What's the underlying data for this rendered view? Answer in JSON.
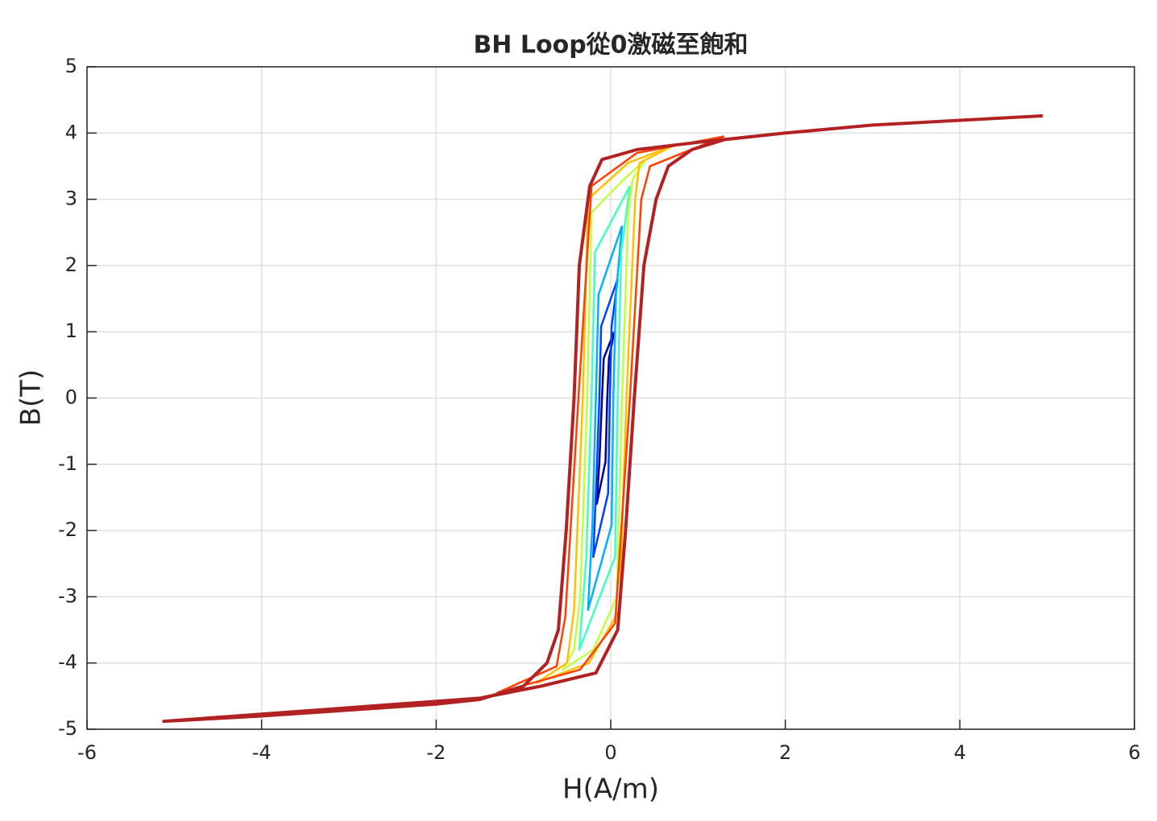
{
  "chart_data": {
    "type": "line",
    "title": "BH Loop從0激磁至飽和",
    "x_label": "H(A/m)",
    "y_label": "B(T)",
    "xlim": [
      -6,
      6
    ],
    "xticks": [
      -6,
      -4,
      -2,
      0,
      2,
      4,
      6
    ],
    "ylim": [
      -5,
      5
    ],
    "yticks": [
      -5,
      -4,
      -3,
      -2,
      -1,
      0,
      1,
      2,
      3,
      4,
      5
    ],
    "grid": true,
    "series": [
      {
        "color": "#00008f",
        "x": [
          0.04,
          -0.08,
          -0.1,
          -0.13,
          -0.16,
          -0.06,
          -0.04,
          -0.02,
          0.04
        ],
        "y": [
          1.0,
          0.6,
          0,
          -0.96,
          -1.6,
          -0.96,
          0,
          0.6,
          1.0
        ]
      },
      {
        "color": "#0040ff",
        "x": [
          0.08,
          -0.11,
          -0.13,
          -0.17,
          -0.2,
          -0.03,
          -0.01,
          0.01,
          0.08
        ],
        "y": [
          1.8,
          1.08,
          0,
          -1.44,
          -2.4,
          -1.44,
          0,
          1.08,
          1.8
        ]
      },
      {
        "color": "#00b0ff",
        "x": [
          0.13,
          -0.14,
          -0.17,
          -0.21,
          -0.26,
          0.01,
          0.03,
          0.06,
          0.13
        ],
        "y": [
          2.6,
          1.56,
          0,
          -1.92,
          -3.2,
          -1.92,
          0,
          1.56,
          2.6
        ]
      },
      {
        "color": "#40ffc0",
        "x": [
          0.22,
          -0.18,
          -0.22,
          -0.28,
          -0.36,
          0.05,
          0.08,
          0.12,
          0.22
        ],
        "y": [
          3.2,
          2.2,
          0,
          -2.4,
          -3.8,
          -2.4,
          0,
          2.2,
          3.2
        ]
      },
      {
        "color": "#c0ff40",
        "x": [
          0.4,
          0.15,
          -0.22,
          -0.27,
          -0.35,
          -0.42,
          -0.55,
          -0.2,
          0.07,
          0.13,
          0.2,
          0.25,
          0.4
        ],
        "y": [
          3.6,
          3.3,
          2.8,
          0,
          -3.0,
          -3.8,
          -4.1,
          -3.8,
          -3.0,
          0,
          2.8,
          3.3,
          3.6
        ]
      },
      {
        "color": "#ffc000",
        "x": [
          0.7,
          0.2,
          -0.26,
          -0.32,
          -0.42,
          -0.5,
          -0.85,
          -0.25,
          0.1,
          0.18,
          0.28,
          0.33,
          0.7
        ],
        "y": [
          3.8,
          3.55,
          3.0,
          0,
          -3.2,
          -4.0,
          -4.3,
          -4.0,
          -3.2,
          0,
          3.0,
          3.55,
          3.8
        ]
      },
      {
        "color": "#ff4000",
        "x": [
          1.3,
          0.3,
          -0.22,
          -0.37,
          -0.52,
          -0.62,
          -1.3,
          -0.35,
          0.05,
          0.22,
          0.35,
          0.45,
          1.3
        ],
        "y": [
          3.95,
          3.7,
          3.2,
          0,
          -3.3,
          -4.05,
          -4.45,
          -4.1,
          -3.4,
          0,
          3.0,
          3.5,
          3.95
        ]
      },
      {
        "color": "#b22222",
        "x": [
          4.95,
          3,
          2,
          1,
          0.3,
          -0.1,
          -0.24,
          -0.36,
          -0.42,
          -0.51,
          -0.6,
          -0.73,
          -1,
          -1.5,
          -2,
          -4,
          -5.12,
          -1.5,
          -0.8,
          -0.17,
          0.08,
          0.17,
          0.27,
          0.38,
          0.52,
          0.66,
          0.93,
          1.3,
          2,
          3,
          4.95
        ],
        "y": [
          4.26,
          4.12,
          4.0,
          3.86,
          3.75,
          3.6,
          3.2,
          2,
          0,
          -2,
          -3.5,
          -4.0,
          -4.35,
          -4.55,
          -4.62,
          -4.8,
          -4.88,
          -4.53,
          -4.35,
          -4.15,
          -3.5,
          -2,
          0,
          2,
          3,
          3.5,
          3.75,
          3.9,
          4.0,
          4.12,
          4.26
        ]
      }
    ]
  }
}
